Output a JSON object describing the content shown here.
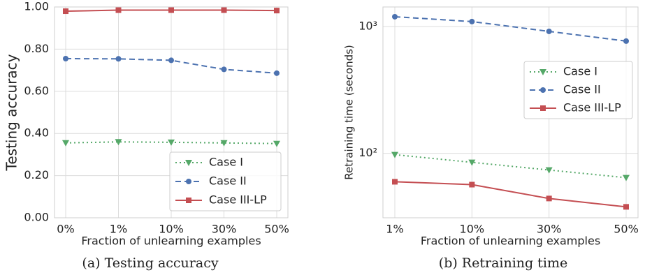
{
  "chart_data": [
    {
      "type": "line",
      "caption": "(a) Testing accuracy",
      "xlabel": "Fraction of unlearning examples",
      "ylabel": "Testing accuracy",
      "categories": [
        "0%",
        "1%",
        "10%",
        "30%",
        "50%"
      ],
      "ylim": [
        0,
        1
      ],
      "yticks": [
        {
          "value": 0,
          "label": "0.00"
        },
        {
          "value": 0.2,
          "label": "0.20"
        },
        {
          "value": 0.4,
          "label": "0.40"
        },
        {
          "value": 0.6,
          "label": "0.60"
        },
        {
          "value": 0.8,
          "label": "0.80"
        },
        {
          "value": 1,
          "label": "1.00"
        }
      ],
      "grid": true,
      "legend": "lower right",
      "series": [
        {
          "name": "Case I",
          "color": "#55a868",
          "marker": "triangle",
          "dash": "dotted",
          "values": [
            0.355,
            0.36,
            0.358,
            0.355,
            0.352
          ]
        },
        {
          "name": "Case II",
          "color": "#4c72b0",
          "marker": "circle",
          "dash": "dashed",
          "values": [
            0.755,
            0.754,
            0.747,
            0.704,
            0.686
          ]
        },
        {
          "name": "Case III-LP",
          "color": "#c44e52",
          "marker": "square",
          "dash": "solid",
          "values": [
            0.98,
            0.985,
            0.985,
            0.985,
            0.983
          ]
        }
      ]
    },
    {
      "type": "line",
      "caption": "(b) Retraining time",
      "xlabel": "Fraction of unlearning examples",
      "ylabel": "Retraining time (seconds)",
      "categories": [
        "1%",
        "10%",
        "30%",
        "50%"
      ],
      "log_scale": true,
      "ylim": [
        31,
        1425
      ],
      "yticks": [
        {
          "value": 100,
          "label": "10²"
        },
        {
          "value": 1000,
          "label": "10³"
        }
      ],
      "grid": true,
      "legend": "center right",
      "series": [
        {
          "name": "Case I",
          "color": "#55a868",
          "marker": "triangle",
          "dash": "dotted",
          "values": [
            97.5,
            84.8,
            73.8,
            64.2
          ]
        },
        {
          "name": "Case II",
          "color": "#4c72b0",
          "marker": "circle",
          "dash": "dashed",
          "values": [
            1194,
            1093,
            915,
            767
          ]
        },
        {
          "name": "Case III-LP",
          "color": "#c44e52",
          "marker": "square",
          "dash": "solid",
          "values": [
            59.6,
            56.6,
            44,
            37.8
          ]
        }
      ]
    }
  ]
}
